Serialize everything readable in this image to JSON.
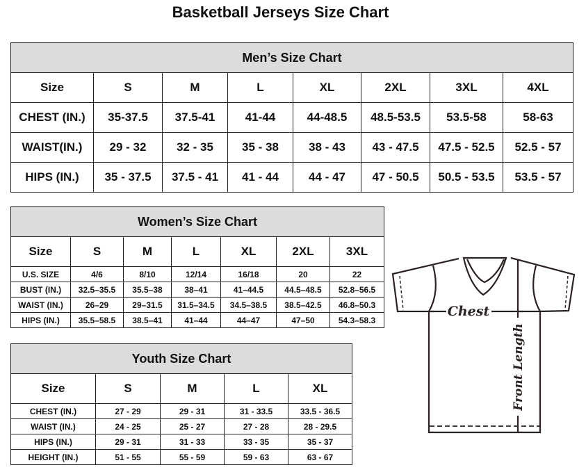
{
  "title": "Basketball Jerseys Size Chart",
  "men": {
    "heading": "Men’s Size Chart",
    "columns": [
      "Size",
      "S",
      "M",
      "L",
      "XL",
      "2XL",
      "3XL",
      "4XL"
    ],
    "rows": [
      [
        "CHEST (IN.)",
        "35-37.5",
        "37.5-41",
        "41-44",
        "44-48.5",
        "48.5-53.5",
        "53.5-58",
        "58-63"
      ],
      [
        "WAIST(IN.)",
        "29 - 32",
        "32 - 35",
        "35 - 38",
        "38 - 43",
        "43 - 47.5",
        "47.5 - 52.5",
        "52.5 - 57"
      ],
      [
        "HIPS (IN.)",
        "35 - 37.5",
        "37.5 - 41",
        "41 - 44",
        "44 - 47",
        "47 - 50.5",
        "50.5 - 53.5",
        "53.5 - 57"
      ]
    ]
  },
  "women": {
    "heading": "Women’s Size Chart",
    "columns": [
      "Size",
      "S",
      "M",
      "L",
      "XL",
      "2XL",
      "3XL"
    ],
    "rows": [
      [
        "U.S. SIZE",
        "4/6",
        "8/10",
        "12/14",
        "16/18",
        "20",
        "22"
      ],
      [
        "BUST (IN.)",
        "32.5–35.5",
        "35.5–38",
        "38–41",
        "41–44.5",
        "44.5–48.5",
        "52.8–56.5"
      ],
      [
        "WAIST (IN.)",
        "26–29",
        "29–31.5",
        "31.5–34.5",
        "34.5–38.5",
        "38.5–42.5",
        "46.8–50.3"
      ],
      [
        "HIPS (IN.)",
        "35.5–58.5",
        "38.5–41",
        "41–44",
        "44–47",
        "47–50",
        "54.3–58.3"
      ]
    ]
  },
  "youth": {
    "heading": "Youth Size Chart",
    "columns": [
      "Size",
      "S",
      "M",
      "L",
      "XL"
    ],
    "rows": [
      [
        "CHEST (IN.)",
        "27 - 29",
        "29 - 31",
        "31 - 33.5",
        "33.5 - 36.5"
      ],
      [
        "WAIST (IN.)",
        "24 - 25",
        "25 - 27",
        "27 - 28",
        "28 - 29.5"
      ],
      [
        "HIPS (IN.)",
        "29 - 31",
        "31 - 33",
        "33 - 35",
        "35 - 37"
      ],
      [
        "HEIGHT (IN.)",
        "51 - 55",
        "55 - 59",
        "59 - 63",
        "63 - 67"
      ]
    ]
  },
  "diagram": {
    "chest_label": "Chest",
    "length_label": "Front Length"
  },
  "colors": {
    "header_bg": "#dcdcdc",
    "line": "#2a2220"
  }
}
